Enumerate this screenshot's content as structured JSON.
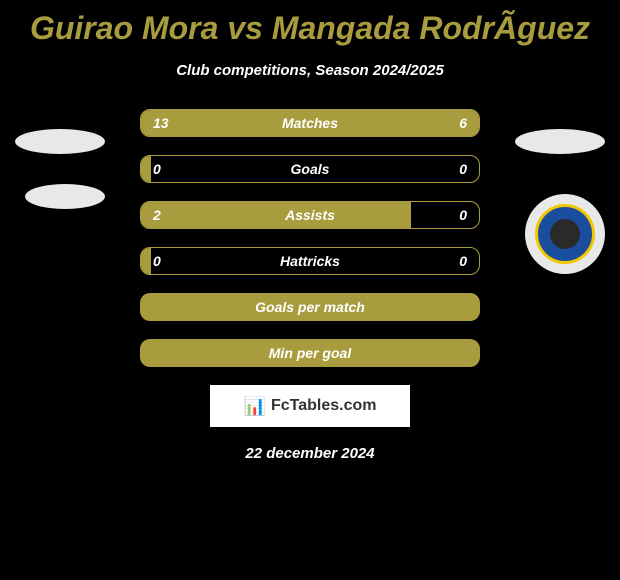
{
  "title": "Guirao Mora vs Mangada RodrÃ­guez",
  "subtitle": "Club competitions, Season 2024/2025",
  "stats": [
    {
      "label": "Matches",
      "left_value": "13",
      "right_value": "6",
      "left_width": 68,
      "right_width": 32
    },
    {
      "label": "Goals",
      "left_value": "0",
      "right_value": "0",
      "left_width": 3,
      "right_width": 0
    },
    {
      "label": "Assists",
      "left_value": "2",
      "right_value": "0",
      "left_width": 80,
      "right_width": 0
    },
    {
      "label": "Hattricks",
      "left_value": "0",
      "right_value": "0",
      "left_width": 3,
      "right_width": 0
    }
  ],
  "full_bars": [
    {
      "label": "Goals per match"
    },
    {
      "label": "Min per goal"
    }
  ],
  "logo_text": "FcTables.com",
  "date": "22 december 2024",
  "colors": {
    "background": "#000000",
    "accent": "#a89c3f",
    "text": "#ffffff",
    "badge_bg": "#e8e8e8",
    "club_blue": "#1a4d9e",
    "club_yellow": "#f0c800"
  }
}
